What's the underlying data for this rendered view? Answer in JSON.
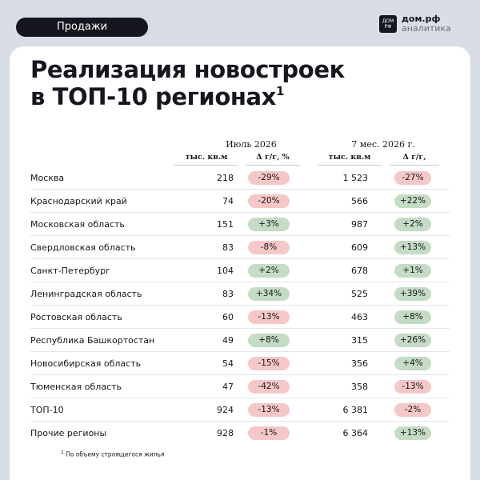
{
  "header": {
    "tag_label": "Продажи",
    "brand_name": "дом.рф",
    "brand_sub": "аналитика",
    "logo_line1": "ДОМ",
    "logo_line2": "РФ"
  },
  "title": {
    "line1": "Реализация новостроек",
    "line2": "в ТОП-10 регионах",
    "footnote_mark": "1"
  },
  "columns": {
    "period1": "Июль 2026",
    "period2": "7 мес. 2026 г.",
    "unit1": "тыс. кв.м",
    "delta1": "Δ г/г, %",
    "unit2": "тыс. кв.м",
    "delta2": "Δ г/г,"
  },
  "colors": {
    "negative": "#f6c7c7",
    "positive": "#c5dcc4"
  },
  "rows": [
    {
      "region": "Москва",
      "m_value": "218",
      "m_delta": "-29%",
      "y_value": "1 523",
      "y_delta": "-27%"
    },
    {
      "region": "Краснодарский край",
      "m_value": "74",
      "m_delta": "-20%",
      "y_value": "566",
      "y_delta": "+22%"
    },
    {
      "region": "Московская область",
      "m_value": "151",
      "m_delta": "+3%",
      "y_value": "987",
      "y_delta": "+2%"
    },
    {
      "region": "Свердловская область",
      "m_value": "83",
      "m_delta": "-8%",
      "y_value": "609",
      "y_delta": "+13%"
    },
    {
      "region": "Санкт-Петербург",
      "m_value": "104",
      "m_delta": "+2%",
      "y_value": "678",
      "y_delta": "+1%"
    },
    {
      "region": "Ленинградская область",
      "m_value": "83",
      "m_delta": "+34%",
      "y_value": "525",
      "y_delta": "+39%"
    },
    {
      "region": "Ростовская область",
      "m_value": "60",
      "m_delta": "-13%",
      "y_value": "463",
      "y_delta": "+8%"
    },
    {
      "region": "Республика Башкортостан",
      "m_value": "49",
      "m_delta": "+8%",
      "y_value": "315",
      "y_delta": "+26%"
    },
    {
      "region": "Новосибирская область",
      "m_value": "54",
      "m_delta": "-15%",
      "y_value": "356",
      "y_delta": "+4%"
    },
    {
      "region": "Тюменская область",
      "m_value": "47",
      "m_delta": "-42%",
      "y_value": "358",
      "y_delta": "-13%"
    },
    {
      "region": "ТОП-10",
      "m_value": "924",
      "m_delta": "-13%",
      "y_value": "6 381",
      "y_delta": "-2%"
    },
    {
      "region": "Прочие регионы",
      "m_value": "928",
      "m_delta": "-1%",
      "y_value": "6 364",
      "y_delta": "+13%"
    }
  ],
  "footnote": {
    "mark": "1",
    "text": "По объему строящегося жилья"
  }
}
